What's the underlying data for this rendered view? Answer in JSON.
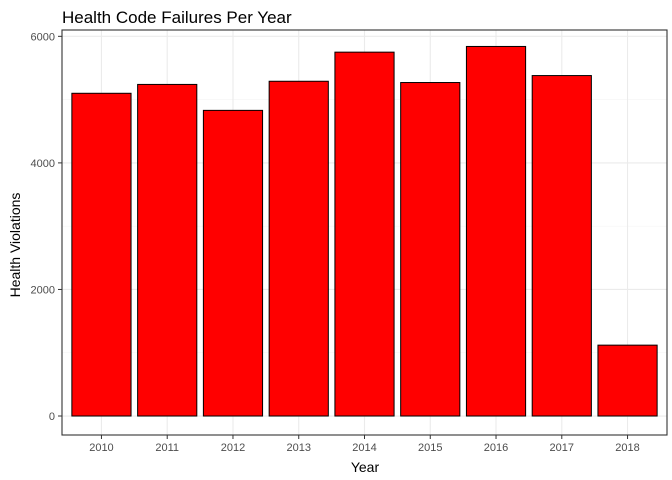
{
  "chart_data": {
    "type": "bar",
    "title": "Health Code Failures Per Year",
    "xlabel": "Year",
    "ylabel": "Health Violations",
    "categories": [
      "2010",
      "2011",
      "2012",
      "2013",
      "2014",
      "2015",
      "2016",
      "2017",
      "2018"
    ],
    "values": [
      5100,
      5240,
      4830,
      5290,
      5750,
      5270,
      5840,
      5380,
      1120
    ],
    "ylim": [
      -300,
      6100
    ],
    "yticks": [
      0,
      2000,
      4000,
      6000
    ],
    "ytick_labels": [
      "0",
      "2000",
      "4000",
      "6000"
    ],
    "grid": true,
    "colors": {
      "bar_fill": "#ff0000",
      "bar_stroke": "#000000",
      "panel_border": "#333333",
      "grid_major": "#ebebeb",
      "grid_minor": "#f5f5f5",
      "tick_text": "#4d4d4d"
    }
  }
}
